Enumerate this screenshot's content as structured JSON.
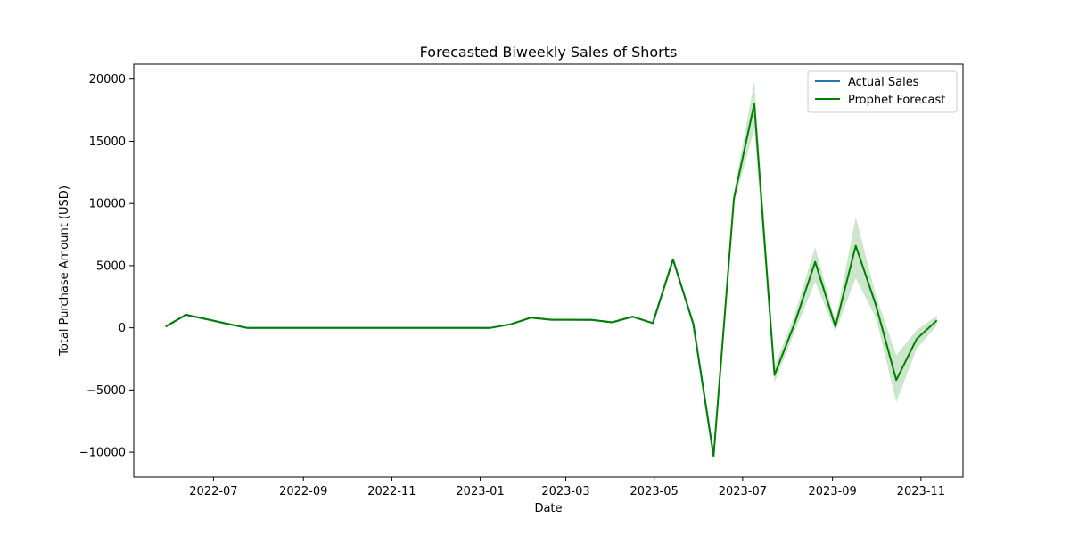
{
  "chart_data": {
    "type": "line",
    "title": "Forecasted Biweekly Sales of Shorts",
    "xlabel": "Date",
    "ylabel": "Total Purchase Amount (USD)",
    "xlim": [
      "2022-05-07",
      "2023-11-30"
    ],
    "ylim": [
      -12000,
      21200
    ],
    "x_ticks": [
      "2022-07",
      "2022-09",
      "2022-11",
      "2023-01",
      "2023-03",
      "2023-05",
      "2023-07",
      "2023-09",
      "2023-11"
    ],
    "y_ticks": [
      -10000,
      -5000,
      0,
      5000,
      10000,
      15000,
      20000
    ],
    "y_tick_labels": [
      "−10000",
      "−5000",
      "0",
      "5000",
      "10000",
      "15000",
      "20000"
    ],
    "grid": false,
    "legend_position": "top-right",
    "series": [
      {
        "name": "Actual Sales",
        "color": "#1f77b4",
        "x": [
          "2022-05-29",
          "2022-06-12",
          "2022-06-26",
          "2022-07-10",
          "2022-07-24",
          "2022-08-07",
          "2022-08-21",
          "2022-09-04",
          "2022-09-18",
          "2022-10-02",
          "2022-10-16",
          "2022-10-30",
          "2022-11-13",
          "2022-11-27",
          "2022-12-11",
          "2022-12-25",
          "2023-01-08",
          "2023-01-22",
          "2023-02-05",
          "2023-02-19",
          "2023-03-05",
          "2023-03-19",
          "2023-04-02",
          "2023-04-16",
          "2023-04-30",
          "2023-05-14",
          "2023-05-28",
          "2023-06-11"
        ],
        "y": [
          100,
          1050,
          700,
          330,
          0,
          0,
          0,
          0,
          0,
          0,
          0,
          0,
          0,
          0,
          0,
          0,
          0,
          280,
          820,
          650,
          650,
          640,
          440,
          900,
          380,
          5500,
          300,
          -10300
        ]
      },
      {
        "name": "Prophet Forecast",
        "color": "#008000",
        "x": [
          "2022-05-29",
          "2022-06-12",
          "2022-06-26",
          "2022-07-10",
          "2022-07-24",
          "2022-08-07",
          "2022-08-21",
          "2022-09-04",
          "2022-09-18",
          "2022-10-02",
          "2022-10-16",
          "2022-10-30",
          "2022-11-13",
          "2022-11-27",
          "2022-12-11",
          "2022-12-25",
          "2023-01-08",
          "2023-01-22",
          "2023-02-05",
          "2023-02-19",
          "2023-03-05",
          "2023-03-19",
          "2023-04-02",
          "2023-04-16",
          "2023-04-30",
          "2023-05-14",
          "2023-05-28",
          "2023-06-11",
          "2023-06-25",
          "2023-07-09",
          "2023-07-23",
          "2023-08-06",
          "2023-08-20",
          "2023-09-03",
          "2023-09-17",
          "2023-10-01",
          "2023-10-15",
          "2023-10-29",
          "2023-11-12"
        ],
        "y": [
          100,
          1050,
          700,
          330,
          0,
          0,
          0,
          0,
          0,
          0,
          0,
          0,
          0,
          0,
          0,
          0,
          0,
          280,
          820,
          650,
          650,
          640,
          440,
          900,
          380,
          5500,
          300,
          -10300,
          10400,
          18000,
          -3800,
          400,
          5300,
          100,
          6600,
          1800,
          -4200,
          -900,
          600
        ],
        "lower": [
          100,
          1050,
          700,
          330,
          0,
          0,
          0,
          0,
          0,
          0,
          0,
          0,
          0,
          0,
          0,
          0,
          0,
          280,
          820,
          650,
          650,
          640,
          440,
          900,
          380,
          5500,
          300,
          -10300,
          10000,
          16000,
          -4400,
          -300,
          3700,
          -300,
          4000,
          800,
          -6000,
          -1700,
          200
        ],
        "upper": [
          100,
          1050,
          700,
          330,
          0,
          0,
          0,
          0,
          0,
          0,
          0,
          0,
          0,
          0,
          0,
          0,
          0,
          280,
          820,
          650,
          650,
          640,
          440,
          900,
          380,
          5500,
          300,
          -10300,
          10900,
          19800,
          -3100,
          1100,
          6500,
          500,
          8900,
          2600,
          -2200,
          -200,
          1000
        ],
        "band_color": "#008000"
      }
    ]
  }
}
